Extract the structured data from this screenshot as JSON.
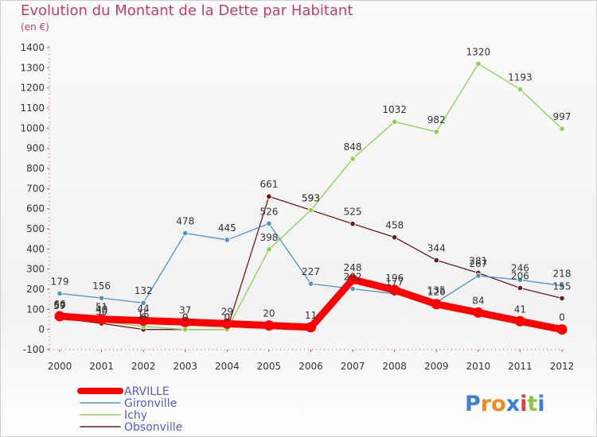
{
  "chart_data": {
    "type": "line",
    "title": "Evolution du Montant de la Dette par Habitant",
    "subtitle": "(en €)",
    "x": [
      "2000",
      "2001",
      "2002",
      "2003",
      "2004",
      "2005",
      "2006",
      "2007",
      "2008",
      "2009",
      "2010",
      "2011",
      "2012"
    ],
    "ylim": [
      -100,
      1400
    ],
    "yticks": [
      -100,
      0,
      100,
      200,
      300,
      400,
      500,
      600,
      700,
      800,
      900,
      1000,
      1100,
      1200,
      1300,
      1400
    ],
    "grid": false,
    "legend_position": "bottom-left",
    "series": [
      {
        "name": "ARVILLE",
        "color": "#ff0000",
        "values": [
          66,
          51,
          44,
          37,
          29,
          20,
          11,
          248,
          196,
          126,
          84,
          41,
          0
        ]
      },
      {
        "name": "Gironville",
        "color": "#4f92c8",
        "values": [
          179,
          156,
          132,
          478,
          445,
          526,
          227,
          202,
          177,
          135,
          267,
          246,
          218
        ]
      },
      {
        "name": "Ichy",
        "color": "#8cd14f",
        "values": [
          59,
          40,
          15,
          0,
          0,
          398,
          593,
          848,
          1032,
          982,
          1320,
          1193,
          997
        ]
      },
      {
        "name": "Obsonville",
        "color": "#6b1a1a",
        "values": [
          57,
          30,
          0,
          0,
          0,
          661,
          593,
          525,
          458,
          344,
          281,
          206,
          155
        ]
      }
    ]
  },
  "logo": {
    "text": "Proxiti",
    "letters": [
      "P",
      "r",
      "o",
      "x",
      "i",
      "t",
      "i"
    ],
    "colors": [
      "#3a7fd0",
      "#f08a1c",
      "#f08a1c",
      "#3a7fd0",
      "#e73c3c",
      "#8cc63f",
      "#3a7fd0"
    ]
  }
}
